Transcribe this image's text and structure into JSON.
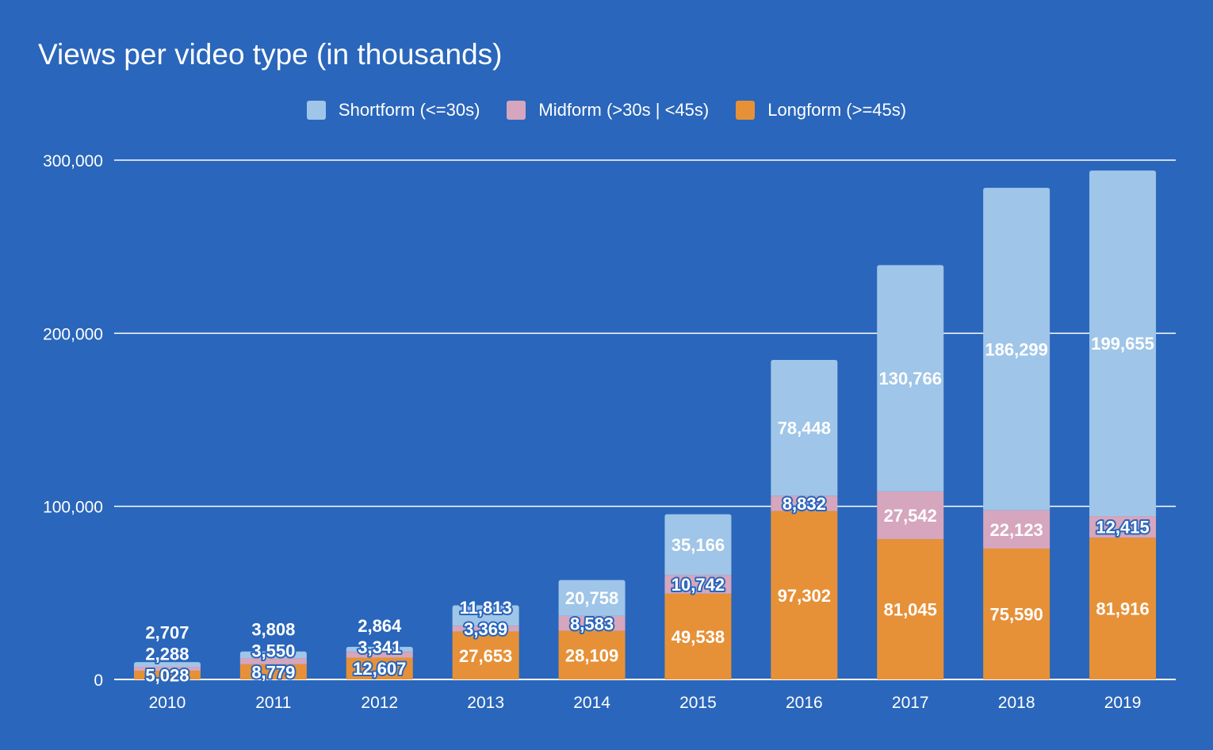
{
  "chart_data": {
    "type": "bar",
    "stacked": true,
    "title": "Views per video type (in thousands)",
    "xlabel": "",
    "ylabel": "",
    "ylim": [
      0,
      300000
    ],
    "y_ticks": [
      0,
      100000,
      200000,
      300000
    ],
    "y_tick_labels": [
      "0",
      "100,000",
      "200,000",
      "300,000"
    ],
    "grid": true,
    "legend_position": "top-center",
    "categories": [
      "2010",
      "2011",
      "2012",
      "2013",
      "2014",
      "2015",
      "2016",
      "2017",
      "2018",
      "2019"
    ],
    "series": [
      {
        "name": "Longform (>=45s)",
        "color": "#e69138",
        "values": [
          5028,
          8779,
          12607,
          27653,
          28109,
          49538,
          97302,
          81045,
          75590,
          81916
        ],
        "labels": [
          "5,028",
          "8,779",
          "12,607",
          "27,653",
          "28,109",
          "49,538",
          "97,302",
          "81,045",
          "75,590",
          "81,916"
        ]
      },
      {
        "name": "Midform (>30s | <45s)",
        "color": "#d5a6bd",
        "values": [
          2288,
          3550,
          3341,
          3369,
          8583,
          10742,
          8832,
          27542,
          22123,
          12415
        ],
        "labels": [
          "2,288",
          "3,550",
          "3,341",
          "3,369",
          "8,583",
          "10,742",
          "8,832",
          "27,542",
          "22,123",
          "12,415"
        ]
      },
      {
        "name": "Shortform (<=30s)",
        "color": "#9fc5e8",
        "values": [
          2707,
          3808,
          2864,
          11813,
          20758,
          35166,
          78448,
          130766,
          186299,
          199655
        ],
        "labels": [
          "2,707",
          "3,808",
          "2,864",
          "11,813",
          "20,758",
          "35,166",
          "78,448",
          "130,766",
          "186,299",
          "199,655"
        ]
      }
    ],
    "legend_order": [
      2,
      1,
      0
    ]
  },
  "colors": {
    "background": "#2a66bb",
    "gridline": "#ffffff",
    "text": "#ffffff"
  }
}
